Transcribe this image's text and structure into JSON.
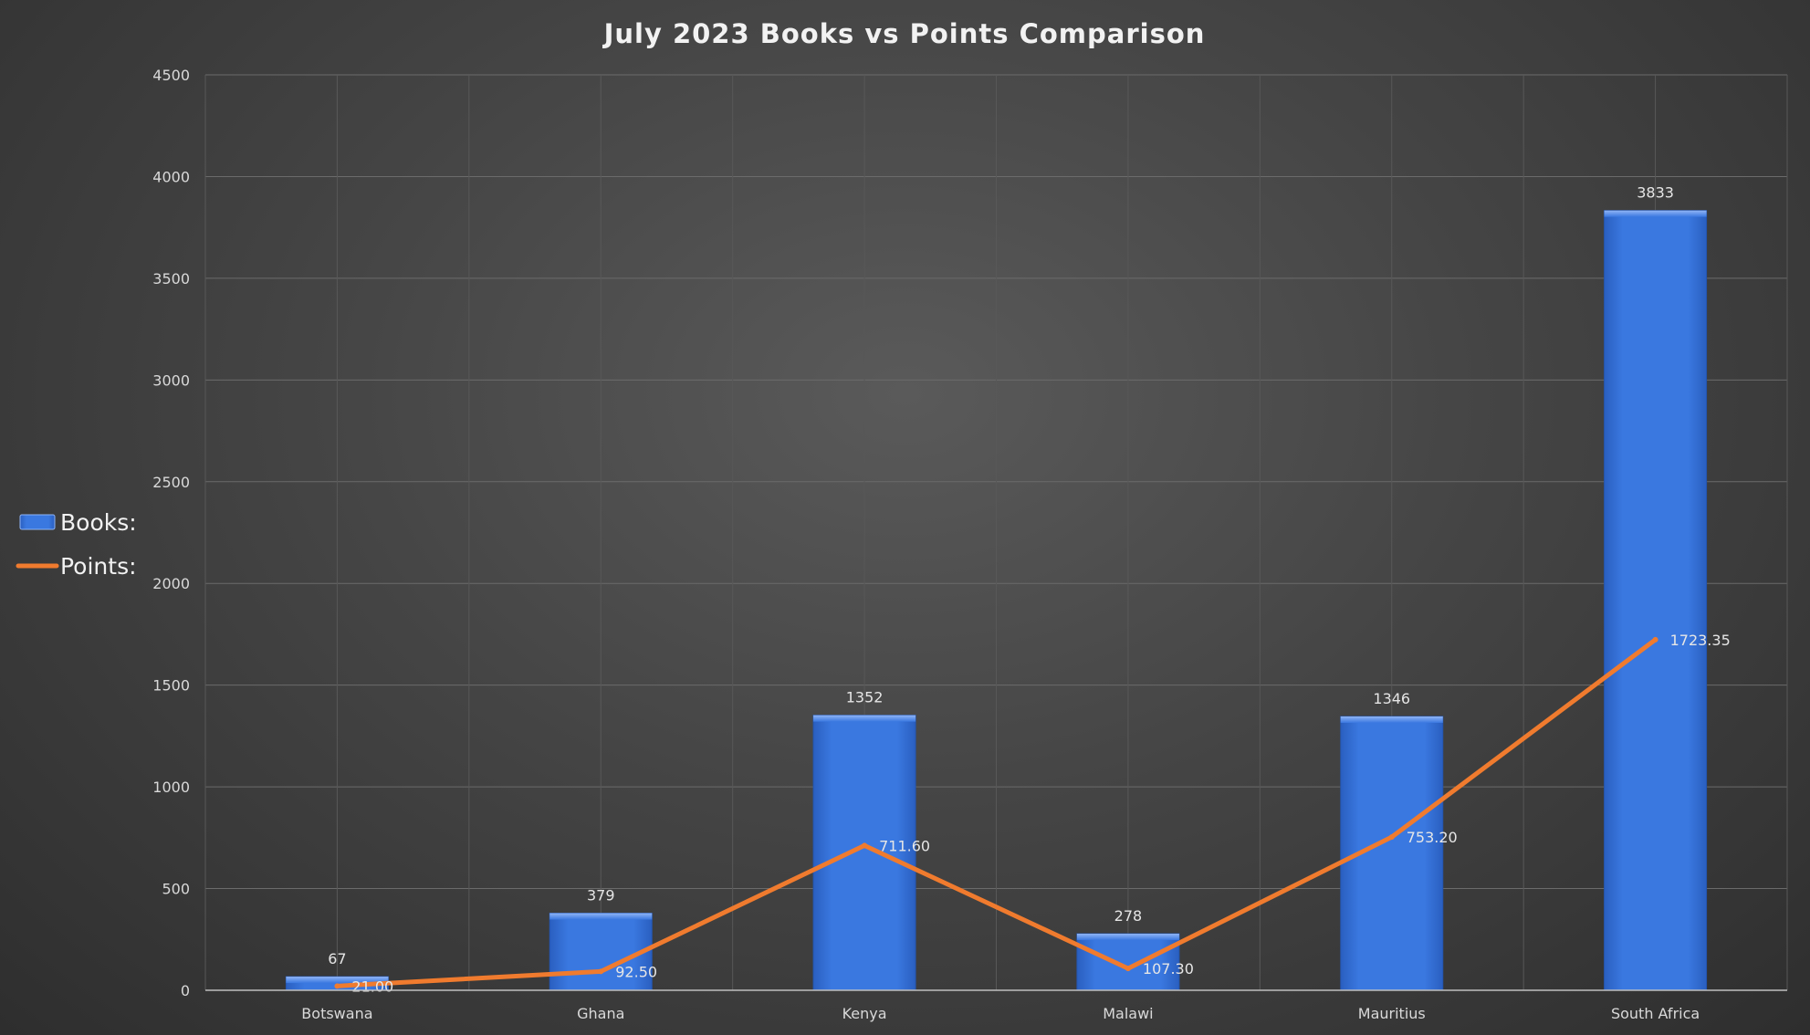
{
  "chart_data": {
    "type": "bar",
    "title": "July 2023 Books vs Points Comparison",
    "categories": [
      "Botswana",
      "Ghana",
      "Kenya",
      "Malawi",
      "Mauritius",
      "South Africa"
    ],
    "series": [
      {
        "name": "Books:",
        "type": "bar",
        "color": "#3a78e0",
        "values": [
          67,
          379,
          1352,
          278,
          1346,
          3833
        ],
        "labels": [
          "67",
          "379",
          "1352",
          "278",
          "1346",
          "3833"
        ]
      },
      {
        "name": "Points:",
        "type": "line",
        "color": "#f07b2e",
        "values": [
          21.0,
          92.5,
          711.6,
          107.3,
          753.2,
          1723.35
        ],
        "labels": [
          "21.00",
          "92.50",
          "711.60",
          "107.30",
          "753.20",
          "1723.35"
        ]
      }
    ],
    "ylim": [
      0,
      4500
    ],
    "yticks": [
      0,
      500,
      1000,
      1500,
      2000,
      2500,
      3000,
      3500,
      4000,
      4500
    ],
    "grid": true,
    "legend": "left"
  }
}
